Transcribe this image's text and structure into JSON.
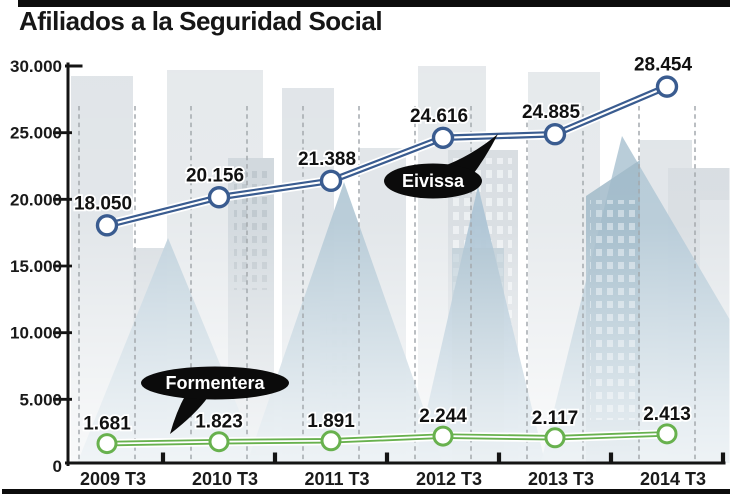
{
  "title": "Afiliados a la Seguridad Social",
  "chart_data": {
    "type": "line",
    "x_labels": [
      "2009 T3",
      "2010 T3",
      "2011 T3",
      "2012 T3",
      "2013 T3",
      "2014 T3"
    ],
    "y_tick_labels": [
      "30.000",
      "25.000",
      "20.000",
      "15.000",
      "10.000",
      "5.000",
      "0"
    ],
    "y_tick_values": [
      30000,
      25000,
      20000,
      15000,
      10000,
      5000,
      0
    ],
    "ylim": [
      0,
      30000
    ],
    "grid": "vertical dashed half-year lines",
    "legend_style": "black callout bubbles on chart",
    "series": [
      {
        "name": "Eivissa",
        "color": "#3a5c90",
        "values": [
          18050,
          20156,
          21388,
          24616,
          24885,
          28454
        ],
        "value_labels": [
          "18.050",
          "20.156",
          "21.388",
          "24.616",
          "24.885",
          "28.454"
        ]
      },
      {
        "name": "Formentera",
        "color": "#68b14e",
        "values": [
          1681,
          1823,
          1891,
          2244,
          2117,
          2413
        ],
        "value_labels": [
          "1.681",
          "1.823",
          "1.891",
          "2.244",
          "2.117",
          "2.413"
        ]
      }
    ]
  },
  "frame": {
    "bar_color": "#0c0c0c"
  }
}
